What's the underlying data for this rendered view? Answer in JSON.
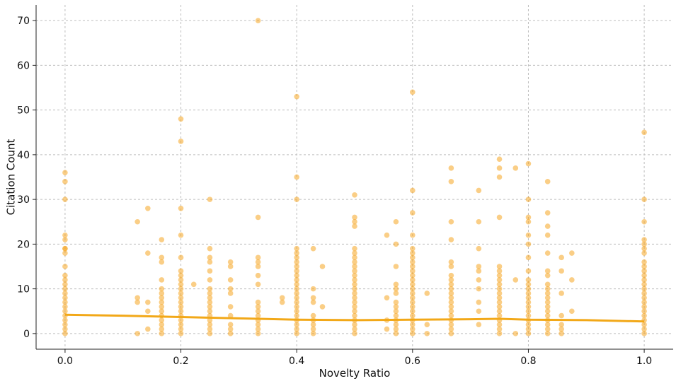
{
  "chart_data": {
    "type": "scatter",
    "title": "",
    "xlabel": "Novelty Ratio",
    "ylabel": "Citation Count",
    "xlim": [
      -0.05,
      1.05
    ],
    "ylim": [
      -3.5,
      73.5
    ],
    "xticks": [
      0.0,
      0.2,
      0.4,
      0.6,
      0.8,
      1.0
    ],
    "xtick_labels": [
      "0.0",
      "0.2",
      "0.4",
      "0.6",
      "0.8",
      "1.0"
    ],
    "yticks": [
      0,
      10,
      20,
      30,
      40,
      50,
      60,
      70
    ],
    "ytick_labels": [
      "0",
      "10",
      "20",
      "30",
      "40",
      "50",
      "60",
      "70"
    ],
    "grid": true,
    "point_color": "#f5a623",
    "trend_color": "#f2a818",
    "series": [
      {
        "name": "papers",
        "columns": [
          {
            "x": 0.0,
            "y": [
              0,
              1,
              2,
              3,
              4,
              5,
              6,
              7,
              8,
              9,
              10,
              11,
              12,
              13,
              15,
              18,
              19,
              19,
              21,
              22,
              30,
              34,
              36
            ]
          },
          {
            "x": 0.125,
            "y": [
              0,
              7,
              8,
              25
            ]
          },
          {
            "x": 0.1429,
            "y": [
              1,
              5,
              7,
              18,
              28
            ]
          },
          {
            "x": 0.1667,
            "y": [
              0,
              1,
              2,
              3,
              4,
              5,
              6,
              7,
              8,
              9,
              10,
              12,
              16,
              17,
              21
            ]
          },
          {
            "x": 0.2,
            "y": [
              0,
              1,
              2,
              3,
              4,
              5,
              6,
              7,
              8,
              9,
              10,
              11,
              12,
              13,
              14,
              17,
              22,
              28,
              43,
              48
            ]
          },
          {
            "x": 0.2222,
            "y": [
              11
            ]
          },
          {
            "x": 0.25,
            "y": [
              0,
              1,
              2,
              3,
              4,
              5,
              6,
              7,
              8,
              9,
              10,
              12,
              14,
              16,
              17,
              19,
              30
            ]
          },
          {
            "x": 0.2857,
            "y": [
              0,
              1,
              2,
              4,
              6,
              9,
              10,
              12,
              15,
              16
            ]
          },
          {
            "x": 0.3333,
            "y": [
              0,
              1,
              2,
              3,
              4,
              5,
              6,
              7,
              11,
              13,
              15,
              16,
              17,
              26,
              70
            ]
          },
          {
            "x": 0.375,
            "y": [
              7,
              8
            ]
          },
          {
            "x": 0.4,
            "y": [
              0,
              1,
              2,
              3,
              4,
              5,
              6,
              7,
              8,
              9,
              10,
              11,
              12,
              13,
              14,
              15,
              16,
              17,
              18,
              19,
              30,
              35,
              53
            ]
          },
          {
            "x": 0.4286,
            "y": [
              0,
              1,
              2,
              3,
              4,
              7,
              8,
              10,
              19
            ]
          },
          {
            "x": 0.4444,
            "y": [
              6,
              15
            ]
          },
          {
            "x": 0.5,
            "y": [
              0,
              1,
              2,
              3,
              4,
              5,
              6,
              7,
              8,
              9,
              10,
              11,
              12,
              13,
              14,
              15,
              16,
              17,
              18,
              19,
              24,
              25,
              26,
              31
            ]
          },
          {
            "x": 0.5556,
            "y": [
              1,
              3,
              8,
              22
            ]
          },
          {
            "x": 0.5714,
            "y": [
              0,
              1,
              2,
              3,
              4,
              5,
              6,
              7,
              9,
              10,
              11,
              15,
              20,
              25
            ]
          },
          {
            "x": 0.6,
            "y": [
              0,
              1,
              2,
              3,
              4,
              5,
              6,
              7,
              8,
              9,
              10,
              11,
              12,
              13,
              14,
              15,
              16,
              17,
              18,
              19,
              22,
              27,
              32,
              54
            ]
          },
          {
            "x": 0.625,
            "y": [
              0,
              2,
              9
            ]
          },
          {
            "x": 0.6667,
            "y": [
              0,
              1,
              2,
              3,
              4,
              5,
              6,
              7,
              8,
              9,
              10,
              11,
              12,
              13,
              15,
              16,
              21,
              25,
              34,
              37
            ]
          },
          {
            "x": 0.7143,
            "y": [
              2,
              5,
              7,
              10,
              12,
              14,
              15,
              19,
              25,
              32
            ]
          },
          {
            "x": 0.75,
            "y": [
              0,
              1,
              2,
              3,
              4,
              5,
              6,
              7,
              8,
              9,
              10,
              11,
              12,
              13,
              14,
              15,
              26,
              35,
              37,
              39
            ]
          },
          {
            "x": 0.7778,
            "y": [
              0,
              12,
              37
            ]
          },
          {
            "x": 0.8,
            "y": [
              0,
              1,
              2,
              3,
              4,
              5,
              6,
              7,
              8,
              9,
              10,
              11,
              12,
              14,
              17,
              20,
              22,
              25,
              26,
              30,
              38
            ]
          },
          {
            "x": 0.8333,
            "y": [
              0,
              1,
              2,
              3,
              4,
              5,
              6,
              7,
              8,
              9,
              10,
              11,
              13,
              14,
              18,
              22,
              24,
              27,
              34
            ]
          },
          {
            "x": 0.8571,
            "y": [
              0,
              1,
              2,
              4,
              9,
              14,
              17
            ]
          },
          {
            "x": 0.875,
            "y": [
              5,
              12,
              18
            ]
          },
          {
            "x": 1.0,
            "y": [
              0,
              1,
              2,
              3,
              4,
              5,
              6,
              7,
              8,
              9,
              10,
              11,
              12,
              13,
              14,
              15,
              16,
              18,
              19,
              20,
              21,
              25,
              30,
              45
            ]
          }
        ]
      },
      {
        "name": "trend",
        "x": [
          0.0,
          0.1,
          0.2,
          0.3,
          0.4,
          0.5,
          0.6,
          0.7,
          0.75,
          0.8,
          0.9,
          1.0
        ],
        "y": [
          4.2,
          4.0,
          3.7,
          3.4,
          3.1,
          3.0,
          3.1,
          3.2,
          3.3,
          3.1,
          3.0,
          2.7
        ]
      }
    ]
  }
}
